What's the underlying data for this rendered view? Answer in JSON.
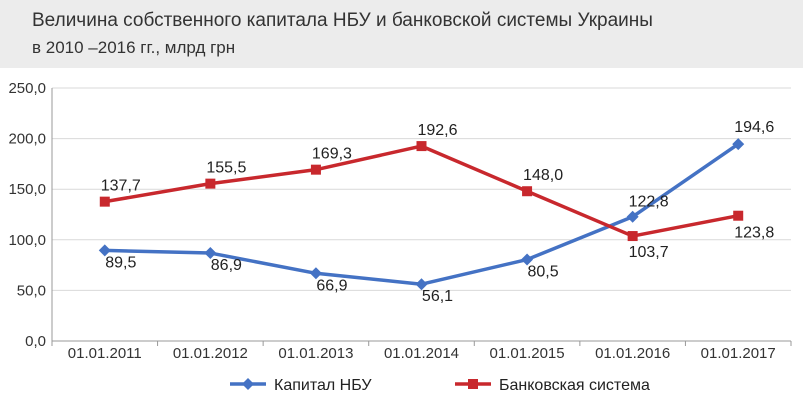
{
  "chart_data": {
    "type": "line",
    "title": "Величина собственного капитала НБУ и банковской системы Украины",
    "subtitle": "в 2010 –2016 гг., млрд грн",
    "xlabel": "",
    "ylabel": "",
    "categories": [
      "01.01.2011",
      "01.01.2012",
      "01.01.2013",
      "01.01.2014",
      "01.01.2015",
      "01.01.2016",
      "01.01.2017"
    ],
    "ylim": [
      0,
      250
    ],
    "yticks": [
      "0,0",
      "50,0",
      "100,0",
      "150,0",
      "200,0",
      "250,0"
    ],
    "grid": true,
    "legend_position": "bottom",
    "series": [
      {
        "name": "Капитал НБУ",
        "color": "#4472c4",
        "marker": "diamond",
        "values": [
          89.5,
          86.9,
          66.9,
          56.1,
          80.5,
          122.8,
          194.6
        ],
        "labels": [
          "89,5",
          "86,9",
          "66,9",
          "56,1",
          "80,5",
          "122,8",
          "194,6"
        ]
      },
      {
        "name": "Банковская система",
        "color": "#c8282d",
        "marker": "square",
        "values": [
          137.7,
          155.5,
          169.3,
          192.6,
          148.0,
          103.7,
          123.8
        ],
        "labels": [
          "137,7",
          "155,5",
          "169,3",
          "192,6",
          "148,0",
          "103,7",
          "123,8"
        ]
      }
    ]
  }
}
